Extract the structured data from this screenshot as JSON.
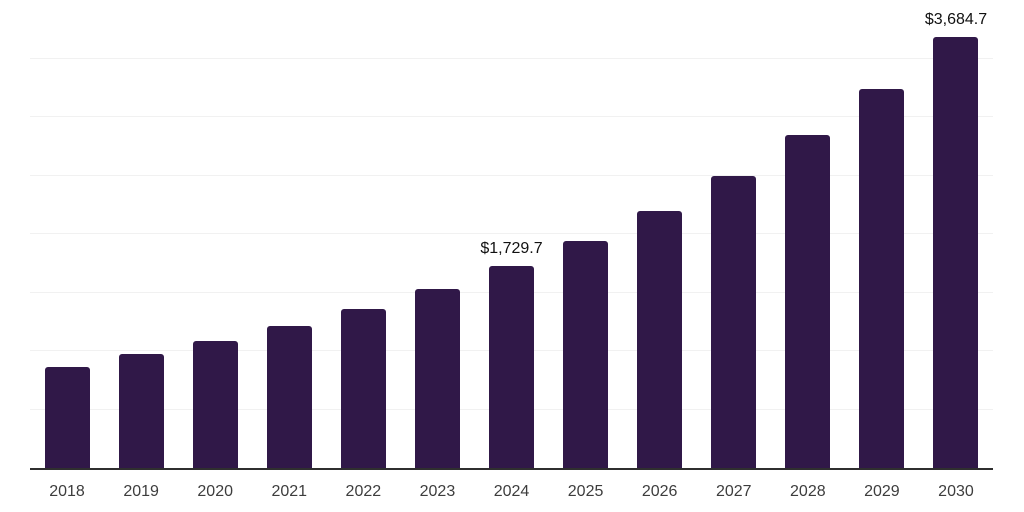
{
  "chart_data": {
    "type": "bar",
    "title": "",
    "xlabel": "",
    "ylabel": "",
    "categories": [
      "2018",
      "2019",
      "2020",
      "2021",
      "2022",
      "2023",
      "2024",
      "2025",
      "2026",
      "2027",
      "2028",
      "2029",
      "2030"
    ],
    "values": [
      862,
      973,
      1085,
      1214,
      1359,
      1531,
      1729.7,
      1943,
      2200,
      2500,
      2843,
      3238,
      3684.7
    ],
    "data_labels": {
      "2024": "$1,729.7",
      "2030": "$3,684.7"
    },
    "ylim": [
      0,
      4000
    ],
    "gridline_step": 500,
    "grid": "horizontal",
    "y_tick_labels_shown": false,
    "legend": "none",
    "colors": {
      "bar": "#301848",
      "gridline": "#f1f1f1",
      "axis_line": "#2f2f2f",
      "x_tick_label": "#3d3d3d",
      "value_label": "#111111",
      "background": "#ffffff"
    }
  }
}
